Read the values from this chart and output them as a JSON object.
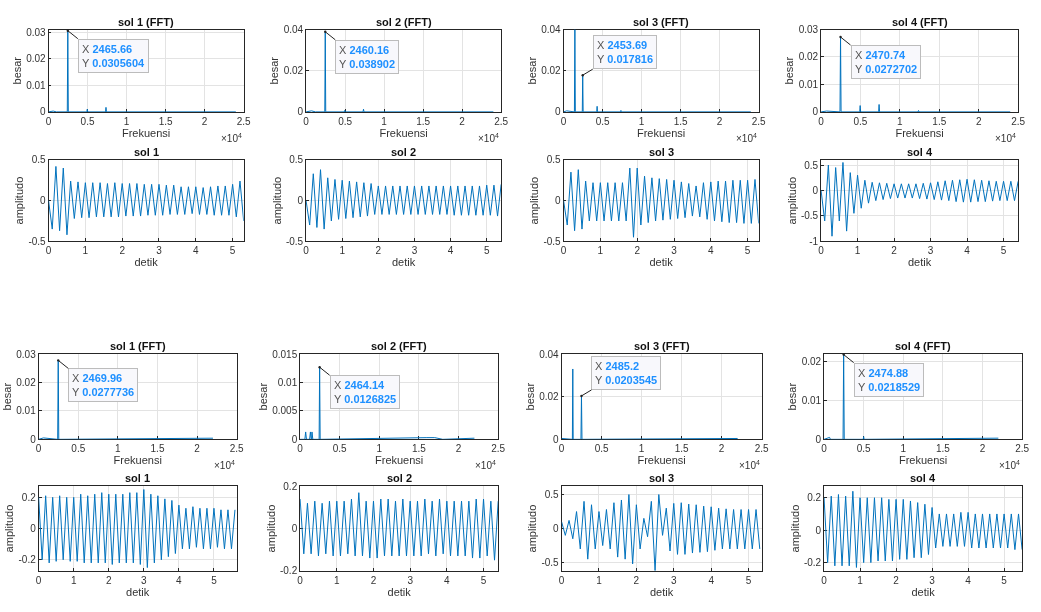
{
  "chart_data": [
    {
      "type": "line",
      "title": "sol 1 (FFT)",
      "xlabel": "Frekuensi",
      "ylabel": "besar",
      "grid": true,
      "xlim": [
        0,
        2.5
      ],
      "ylim": [
        0,
        0.031
      ],
      "xticks": [
        0,
        0.5,
        1,
        1.5,
        2,
        2.5
      ],
      "yticks": [
        0,
        0.01,
        0.02,
        0.03
      ],
      "series": [
        {
          "color": "#0072bd",
          "x": [
            0,
            0.06,
            0.1,
            0.24,
            0.246566,
            0.253,
            0.49,
            0.496,
            0.502,
            0.73,
            0.736,
            0.742,
            2.4
          ],
          "values": [
            0,
            0.0003,
            0,
            0,
            0.0305604,
            0,
            0,
            0.001,
            0,
            0,
            0.0017,
            0,
            0
          ]
        }
      ],
      "annotations": [
        {
          "text": "X 2465.66\nY 0.0305604",
          "x": 0.246566,
          "y": 0.0305604
        },
        "×10$^{4}$"
      ]
    },
    {
      "type": "line",
      "title": "sol 2 (FFT)",
      "xlabel": "Frekuensi",
      "ylabel": "besar",
      "grid": true,
      "xlim": [
        0,
        2.5
      ],
      "ylim": [
        0,
        0.04
      ],
      "xticks": [
        0,
        0.5,
        1,
        1.5,
        2,
        2.5
      ],
      "yticks": [
        0,
        0.02,
        0.04
      ],
      "series": [
        {
          "color": "#0072bd",
          "x": [
            0,
            0.07,
            0.12,
            0.24,
            0.246016,
            0.252,
            0.49,
            0.496,
            0.502,
            0.73,
            0.736,
            0.742,
            2.4
          ],
          "values": [
            0,
            0.0005,
            0,
            0,
            0.038902,
            0,
            0,
            0.0007,
            0,
            0,
            0.0013,
            0,
            0
          ]
        }
      ],
      "annotations": [
        {
          "text": "X 2460.16\nY 0.038902",
          "x": 0.246016,
          "y": 0.038902
        },
        "×10$^{4}$"
      ]
    },
    {
      "type": "line",
      "title": "sol 3 (FFT)",
      "xlabel": "Frekuensi",
      "ylabel": "besar",
      "grid": true,
      "xlim": [
        0,
        2.5
      ],
      "ylim": [
        0,
        0.04
      ],
      "xticks": [
        0,
        0.5,
        1,
        1.5,
        2,
        2.5
      ],
      "yticks": [
        0,
        0.02,
        0.04
      ],
      "series": [
        {
          "color": "#0072bd",
          "x": [
            0,
            0.04,
            0.139,
            0.145,
            0.151,
            0.24,
            0.245369,
            0.251,
            0.425,
            0.43,
            0.435,
            0.73,
            0.735,
            0.74,
            2.4
          ],
          "values": [
            0,
            0.0005,
            0,
            0.04,
            0,
            0,
            0.017816,
            0,
            0,
            0.0027,
            0,
            0,
            0.0007,
            0,
            0
          ]
        }
      ],
      "annotations": [
        {
          "text": "X 2453.69\nY 0.017816",
          "x": 0.245369,
          "y": 0.017816
        },
        "×10$^{4}$"
      ]
    },
    {
      "type": "line",
      "title": "sol 4 (FFT)",
      "xlabel": "Frekuensi",
      "ylabel": "besar",
      "grid": true,
      "xlim": [
        0,
        2.5
      ],
      "ylim": [
        0,
        0.03
      ],
      "xticks": [
        0,
        0.5,
        1,
        1.5,
        2,
        2.5
      ],
      "yticks": [
        0,
        0.01,
        0.02,
        0.03
      ],
      "series": [
        {
          "color": "#0072bd",
          "x": [
            0,
            0.07,
            0.24,
            0.247074,
            0.254,
            0.49,
            0.496,
            0.502,
            0.73,
            0.736,
            0.742,
            1.23,
            1.236,
            1.242,
            2.4
          ],
          "values": [
            0,
            0.0003,
            0,
            0.0272702,
            0,
            0,
            0.0023,
            0,
            0,
            0.0027,
            0,
            0,
            0.0005,
            0,
            0
          ]
        }
      ],
      "annotations": [
        {
          "text": "X 2470.74\nY 0.0272702",
          "x": 0.247074,
          "y": 0.0272702
        },
        "×10$^{4}$"
      ]
    },
    {
      "type": "line",
      "title": "sol 1",
      "xlabel": "detik",
      "ylabel": "amplitudo",
      "grid": true,
      "xlim": [
        0,
        5.3
      ],
      "ylim": [
        -0.5,
        0.5
      ],
      "xticks": [
        0,
        1,
        2,
        3,
        4,
        5
      ],
      "yticks": [
        -0.5,
        0,
        0.5
      ],
      "series": [
        {
          "color": "#0072bd",
          "x": [
            0,
            0.1,
            0.2,
            0.3,
            0.4,
            0.5,
            0.6,
            0.7,
            0.8,
            0.9,
            1,
            1.1,
            1.2,
            1.3,
            1.4,
            1.5,
            1.6,
            1.7,
            1.8,
            1.9,
            2,
            2.1,
            2.2,
            2.3,
            2.4,
            2.5,
            2.6,
            2.7,
            2.8,
            2.9,
            3,
            3.1,
            3.2,
            3.3,
            3.4,
            3.5,
            3.6,
            3.7,
            3.8,
            3.9,
            4,
            4.1,
            4.2,
            4.3,
            4.4,
            4.5,
            4.6,
            4.7,
            4.8,
            4.9,
            5,
            5.1,
            5.2,
            5.3
          ],
          "values": [
            0,
            -0.35,
            0.42,
            -0.37,
            0.4,
            -0.42,
            0.24,
            -0.22,
            0.23,
            -0.21,
            0.22,
            -0.21,
            0.22,
            -0.2,
            0.22,
            -0.2,
            0.21,
            -0.2,
            0.22,
            -0.2,
            0.21,
            -0.19,
            0.21,
            -0.19,
            0.21,
            -0.19,
            0.2,
            -0.18,
            0.2,
            -0.18,
            0.2,
            -0.18,
            0.19,
            -0.17,
            0.19,
            -0.17,
            0.17,
            -0.17,
            0.17,
            -0.16,
            0.17,
            -0.17,
            0.16,
            -0.17,
            0.17,
            -0.18,
            0.18,
            -0.18,
            0.18,
            -0.18,
            0.2,
            -0.2,
            0.24,
            -0.25
          ]
        }
      ]
    },
    {
      "type": "line",
      "title": "sol 2",
      "xlabel": "detik",
      "ylabel": "amplitudo",
      "grid": true,
      "xlim": [
        0,
        5.4
      ],
      "ylim": [
        -0.5,
        0.5
      ],
      "xticks": [
        0,
        1,
        2,
        3,
        4,
        5
      ],
      "yticks": [
        -0.5,
        0,
        0.5
      ],
      "series": [
        {
          "color": "#0072bd",
          "x": [
            0,
            0.1,
            0.2,
            0.3,
            0.4,
            0.5,
            0.6,
            0.7,
            0.8,
            0.9,
            1,
            1.1,
            1.2,
            1.3,
            1.4,
            1.5,
            1.6,
            1.7,
            1.8,
            1.9,
            2,
            2.1,
            2.2,
            2.3,
            2.4,
            2.5,
            2.6,
            2.7,
            2.8,
            2.9,
            3,
            3.1,
            3.2,
            3.3,
            3.4,
            3.5,
            3.6,
            3.7,
            3.8,
            3.9,
            4,
            4.1,
            4.2,
            4.3,
            4.4,
            4.5,
            4.6,
            4.7,
            4.8,
            4.9,
            5,
            5.1,
            5.2,
            5.3,
            5.4
          ],
          "values": [
            0,
            -0.3,
            0.33,
            -0.33,
            0.38,
            -0.35,
            0.28,
            -0.25,
            0.26,
            -0.23,
            0.25,
            -0.22,
            0.24,
            -0.21,
            0.23,
            -0.2,
            0.22,
            -0.19,
            0.21,
            -0.17,
            0.18,
            -0.17,
            0.18,
            -0.17,
            0.18,
            -0.17,
            0.18,
            -0.17,
            0.18,
            -0.17,
            0.18,
            -0.17,
            0.18,
            -0.17,
            0.18,
            -0.17,
            0.18,
            -0.17,
            0.18,
            -0.17,
            0.18,
            -0.18,
            0.18,
            -0.18,
            0.18,
            -0.18,
            0.18,
            -0.18,
            0.18,
            -0.18,
            0.19,
            -0.18,
            0.19,
            -0.19,
            0.2
          ]
        }
      ]
    },
    {
      "type": "line",
      "title": "sol 3",
      "xlabel": "detik",
      "ylabel": "amplitudo",
      "grid": true,
      "xlim": [
        0,
        5.3
      ],
      "ylim": [
        -0.5,
        0.5
      ],
      "xticks": [
        0,
        1,
        2,
        3,
        4,
        5
      ],
      "yticks": [
        -0.5,
        0,
        0.5
      ],
      "series": [
        {
          "color": "#0072bd",
          "x": [
            0,
            0.1,
            0.2,
            0.3,
            0.4,
            0.5,
            0.6,
            0.7,
            0.8,
            0.9,
            1,
            1.1,
            1.2,
            1.3,
            1.4,
            1.5,
            1.6,
            1.7,
            1.8,
            1.9,
            2,
            2.1,
            2.2,
            2.3,
            2.4,
            2.5,
            2.6,
            2.7,
            2.8,
            2.9,
            3,
            3.1,
            3.2,
            3.3,
            3.4,
            3.5,
            3.6,
            3.7,
            3.8,
            3.9,
            4,
            4.1,
            4.2,
            4.3,
            4.4,
            4.5,
            4.6,
            4.7,
            4.8,
            4.9,
            5,
            5.1,
            5.2,
            5.3
          ],
          "values": [
            0,
            -0.3,
            0.35,
            -0.37,
            0.38,
            -0.35,
            0.24,
            -0.25,
            0.22,
            -0.25,
            0.22,
            -0.25,
            0.22,
            -0.25,
            0.22,
            -0.25,
            0.22,
            -0.25,
            0.4,
            -0.45,
            0.4,
            -0.3,
            0.3,
            -0.27,
            0.28,
            -0.25,
            0.27,
            -0.24,
            0.26,
            -0.23,
            0.25,
            -0.22,
            0.23,
            -0.21,
            0.21,
            -0.19,
            0.18,
            -0.2,
            0.22,
            -0.23,
            0.23,
            -0.25,
            0.24,
            -0.26,
            0.24,
            -0.27,
            0.25,
            -0.27,
            0.25,
            -0.28,
            0.25,
            -0.28,
            0.26,
            -0.28
          ]
        }
      ]
    },
    {
      "type": "line",
      "title": "sol 4",
      "xlabel": "detik",
      "ylabel": "amplitudo",
      "grid": true,
      "xlim": [
        0,
        5.4
      ],
      "ylim": [
        -1,
        0.6
      ],
      "xticks": [
        0,
        1,
        2,
        3,
        4,
        5
      ],
      "yticks": [
        -1,
        -0.5,
        0,
        0.5
      ],
      "series": [
        {
          "color": "#0072bd",
          "x": [
            0,
            0.1,
            0.2,
            0.3,
            0.4,
            0.5,
            0.6,
            0.7,
            0.8,
            0.9,
            1,
            1.1,
            1.2,
            1.3,
            1.4,
            1.5,
            1.6,
            1.7,
            1.8,
            1.9,
            2,
            2.1,
            2.2,
            2.3,
            2.4,
            2.5,
            2.6,
            2.7,
            2.8,
            2.9,
            3,
            3.1,
            3.2,
            3.3,
            3.4,
            3.5,
            3.6,
            3.7,
            3.8,
            3.9,
            4,
            4.1,
            4.2,
            4.3,
            4.4,
            4.5,
            4.6,
            4.7,
            4.8,
            4.9,
            5,
            5.1,
            5.2,
            5.3,
            5.4
          ],
          "values": [
            0,
            -0.6,
            0.5,
            -0.9,
            0.45,
            -0.6,
            0.55,
            -0.8,
            0.35,
            -0.45,
            0.3,
            -0.35,
            0.2,
            -0.25,
            0.16,
            -0.2,
            0.15,
            -0.18,
            0.14,
            -0.16,
            0.13,
            -0.15,
            0.13,
            -0.15,
            0.13,
            -0.15,
            0.13,
            -0.16,
            0.14,
            -0.17,
            0.15,
            -0.18,
            0.17,
            -0.19,
            0.19,
            -0.2,
            0.2,
            -0.22,
            0.21,
            -0.23,
            0.22,
            -0.23,
            0.21,
            -0.22,
            0.2,
            -0.22,
            0.19,
            -0.21,
            0.18,
            -0.2,
            0.18,
            -0.2,
            0.18,
            -0.2,
            0.18
          ]
        }
      ]
    },
    {
      "type": "line",
      "title": "sol 1 (FFT)",
      "xlabel": "Frekuensi",
      "ylabel": "besar",
      "grid": true,
      "xlim": [
        0,
        2.5
      ],
      "ylim": [
        0,
        0.03
      ],
      "xticks": [
        0,
        0.5,
        1,
        1.5,
        2,
        2.5
      ],
      "yticks": [
        0,
        0.01,
        0.02,
        0.03
      ],
      "series": [
        {
          "color": "#0072bd",
          "x": [
            0,
            0.06,
            0.24,
            0.246996,
            0.254,
            2.2
          ],
          "values": [
            0,
            0.0005,
            0,
            0.0277736,
            0,
            0.0004
          ]
        }
      ],
      "annotations": [
        {
          "text": "X 2469.96\nY 0.0277736",
          "x": 0.246996,
          "y": 0.0277736
        },
        "×10$^{4}$"
      ]
    },
    {
      "type": "line",
      "title": "sol 2 (FFT)",
      "xlabel": "Frekuensi",
      "ylabel": "besar",
      "grid": true,
      "xlim": [
        0,
        2.5
      ],
      "ylim": [
        0,
        0.015
      ],
      "xticks": [
        0,
        0.5,
        1,
        1.5,
        2,
        2.5
      ],
      "yticks": [
        0,
        0.005,
        0.01,
        0.015
      ],
      "series": [
        {
          "color": "#0072bd",
          "x": [
            0,
            0.06,
            0.07,
            0.08,
            0.12,
            0.13,
            0.14,
            0.145,
            0.15,
            0.16,
            0.24,
            0.246414,
            0.253,
            1.6,
            1.7,
            1.8,
            2.2
          ],
          "values": [
            0,
            0,
            0.0013,
            0,
            0,
            0.0013,
            0,
            0,
            0.0013,
            0,
            0,
            0.0126825,
            0,
            0.0003,
            0.0003,
            0,
            0.0002
          ]
        }
      ],
      "annotations": [
        {
          "text": "X 2464.14\nY 0.0126825",
          "x": 0.246414,
          "y": 0.0126825
        },
        "×10$^{4}$"
      ]
    },
    {
      "type": "line",
      "title": "sol 3 (FFT)",
      "xlabel": "Frekuensi",
      "ylabel": "besar",
      "grid": true,
      "xlim": [
        0,
        2.5
      ],
      "ylim": [
        0,
        0.04
      ],
      "xticks": [
        0,
        0.5,
        1,
        1.5,
        2,
        2.5
      ],
      "yticks": [
        0,
        0.02,
        0.04
      ],
      "series": [
        {
          "color": "#0072bd",
          "x": [
            0,
            0.135,
            0.14,
            0.145,
            0.242,
            0.24852,
            0.255,
            2.2
          ],
          "values": [
            0.0004,
            0,
            0.033,
            0,
            0,
            0.0203545,
            0,
            0.0004
          ]
        }
      ],
      "annotations": [
        {
          "text": "X 2485.2\nY 0.0203545",
          "x": 0.24852,
          "y": 0.0203545
        },
        "×10$^{4}$"
      ]
    },
    {
      "type": "line",
      "title": "sol 4 (FFT)",
      "xlabel": "Frekuensi",
      "ylabel": "besar",
      "grid": true,
      "xlim": [
        0,
        2.5
      ],
      "ylim": [
        0,
        0.022
      ],
      "xticks": [
        0,
        0.5,
        1,
        1.5,
        2,
        2.5
      ],
      "yticks": [
        0,
        0.01,
        0.02
      ],
      "series": [
        {
          "color": "#0072bd",
          "x": [
            0,
            0.07,
            0.08,
            0.24,
            0.247488,
            0.255,
            0.495,
            0.5,
            0.505,
            2.2
          ],
          "values": [
            0,
            0.0005,
            0,
            0,
            0.0218529,
            0,
            0,
            0.0007,
            0,
            0.0003
          ]
        }
      ],
      "annotations": [
        {
          "text": "X 2474.88\nY 0.0218529",
          "x": 0.247488,
          "y": 0.0218529
        },
        "×10$^{4}$"
      ]
    },
    {
      "type": "line",
      "title": "sol 1",
      "xlabel": "detik",
      "ylabel": "amplitudo",
      "grid": true,
      "xlim": [
        0,
        5.65
      ],
      "ylim": [
        -0.27,
        0.27
      ],
      "xticks": [
        0,
        1,
        2,
        3,
        4,
        5
      ],
      "yticks": [
        -0.2,
        0,
        0.2
      ],
      "series": [
        {
          "color": "#0072bd",
          "x": [
            0,
            0.1,
            0.2,
            0.3,
            0.4,
            0.5,
            0.6,
            0.7,
            0.8,
            0.9,
            1,
            1.1,
            1.2,
            1.3,
            1.4,
            1.5,
            1.6,
            1.7,
            1.8,
            1.9,
            2,
            2.1,
            2.2,
            2.3,
            2.4,
            2.5,
            2.6,
            2.7,
            2.8,
            2.9,
            3,
            3.1,
            3.2,
            3.3,
            3.4,
            3.5,
            3.6,
            3.7,
            3.8,
            3.9,
            4,
            4.1,
            4.2,
            4.3,
            4.4,
            4.5,
            4.6,
            4.7,
            4.8,
            4.9,
            5,
            5.1,
            5.2,
            5.3,
            5.4,
            5.5,
            5.6
          ],
          "values": [
            0.2,
            -0.2,
            0.21,
            -0.22,
            0.2,
            -0.21,
            0.21,
            -0.2,
            0.2,
            -0.21,
            0.2,
            -0.21,
            0.22,
            -0.22,
            0.21,
            -0.22,
            0.22,
            -0.22,
            0.23,
            -0.22,
            0.22,
            -0.23,
            0.22,
            -0.22,
            0.22,
            -0.22,
            0.23,
            -0.22,
            0.23,
            -0.23,
            0.25,
            -0.25,
            0.22,
            -0.22,
            0.21,
            -0.2,
            0.19,
            -0.18,
            0.18,
            -0.16,
            0.15,
            -0.13,
            0.13,
            -0.13,
            0.14,
            -0.12,
            0.13,
            -0.13,
            0.13,
            -0.13,
            0.13,
            -0.12,
            0.12,
            -0.13,
            0.12,
            -0.13,
            0.12
          ]
        }
      ]
    },
    {
      "type": "line",
      "title": "sol 2",
      "xlabel": "detik",
      "ylabel": "amplitudo",
      "grid": true,
      "xlim": [
        0,
        5.4
      ],
      "ylim": [
        -0.2,
        0.2
      ],
      "xticks": [
        0,
        1,
        2,
        3,
        4,
        5
      ],
      "yticks": [
        -0.2,
        0,
        0.2
      ],
      "series": [
        {
          "color": "#0072bd",
          "x": [
            0,
            0.1,
            0.2,
            0.3,
            0.4,
            0.5,
            0.6,
            0.7,
            0.8,
            0.9,
            1,
            1.1,
            1.2,
            1.3,
            1.4,
            1.5,
            1.6,
            1.7,
            1.8,
            1.9,
            2,
            2.1,
            2.2,
            2.3,
            2.4,
            2.5,
            2.6,
            2.7,
            2.8,
            2.9,
            3,
            3.1,
            3.2,
            3.3,
            3.4,
            3.5,
            3.6,
            3.7,
            3.8,
            3.9,
            4,
            4.1,
            4.2,
            4.3,
            4.4,
            4.5,
            4.6,
            4.7,
            4.8,
            4.9,
            5,
            5.1,
            5.2,
            5.3,
            5.4
          ],
          "values": [
            0.14,
            -0.12,
            0.12,
            -0.12,
            0.13,
            -0.13,
            0.12,
            -0.12,
            0.13,
            -0.13,
            0.13,
            -0.13,
            0.13,
            -0.12,
            0.14,
            -0.13,
            0.17,
            -0.13,
            0.13,
            -0.14,
            0.13,
            -0.14,
            0.14,
            -0.13,
            0.14,
            -0.13,
            0.13,
            -0.13,
            0.14,
            -0.13,
            0.13,
            -0.13,
            0.13,
            -0.13,
            0.14,
            -0.12,
            0.13,
            -0.13,
            0.14,
            -0.12,
            0.13,
            -0.13,
            0.13,
            -0.13,
            0.13,
            -0.13,
            0.13,
            -0.14,
            0.14,
            -0.14,
            0.14,
            -0.13,
            0.13,
            -0.15,
            0.13
          ]
        }
      ]
    },
    {
      "type": "line",
      "title": "sol 3",
      "xlabel": "detik",
      "ylabel": "amplitudo",
      "grid": true,
      "xlim": [
        0,
        5.35
      ],
      "ylim": [
        -0.62,
        0.62
      ],
      "xticks": [
        0,
        1,
        2,
        3,
        4,
        5
      ],
      "yticks": [
        -0.5,
        0,
        0.5
      ],
      "series": [
        {
          "color": "#0072bd",
          "x": [
            0,
            0.1,
            0.2,
            0.3,
            0.4,
            0.5,
            0.6,
            0.7,
            0.8,
            0.9,
            1,
            1.1,
            1.2,
            1.3,
            1.4,
            1.5,
            1.6,
            1.7,
            1.8,
            1.9,
            2,
            2.1,
            2.2,
            2.3,
            2.4,
            2.5,
            2.6,
            2.7,
            2.8,
            2.9,
            3,
            3.1,
            3.2,
            3.3,
            3.4,
            3.5,
            3.6,
            3.7,
            3.8,
            3.9,
            4,
            4.1,
            4.2,
            4.3,
            4.4,
            4.5,
            4.6,
            4.7,
            4.8,
            4.9,
            5,
            5.1,
            5.2,
            5.3
          ],
          "values": [
            0.1,
            -0.1,
            0.12,
            -0.15,
            0.25,
            -0.3,
            0.4,
            -0.45,
            0.35,
            -0.3,
            0.25,
            -0.25,
            0.28,
            -0.3,
            0.38,
            -0.42,
            0.42,
            -0.45,
            0.5,
            -0.52,
            0.35,
            -0.3,
            0.15,
            -0.12,
            0.4,
            -0.62,
            0.5,
            -0.1,
            0.3,
            -0.33,
            0.37,
            -0.38,
            0.38,
            -0.38,
            0.36,
            -0.36,
            0.35,
            -0.35,
            0.33,
            -0.34,
            0.32,
            -0.32,
            0.3,
            -0.3,
            0.29,
            -0.3,
            0.28,
            -0.3,
            0.28,
            -0.3,
            0.28,
            -0.3,
            0.28,
            -0.3
          ]
        }
      ]
    },
    {
      "type": "line",
      "title": "sol 4",
      "xlabel": "detik",
      "ylabel": "amplitudo",
      "grid": true,
      "xlim": [
        0,
        5.5
      ],
      "ylim": [
        -0.25,
        0.27
      ],
      "xticks": [
        0,
        1,
        2,
        3,
        4,
        5
      ],
      "yticks": [
        -0.2,
        0,
        0.2
      ],
      "series": [
        {
          "color": "#0072bd",
          "x": [
            0,
            0.1,
            0.2,
            0.3,
            0.4,
            0.5,
            0.6,
            0.7,
            0.8,
            0.9,
            1,
            1.1,
            1.2,
            1.3,
            1.4,
            1.5,
            1.6,
            1.7,
            1.8,
            1.9,
            2,
            2.1,
            2.2,
            2.3,
            2.4,
            2.5,
            2.6,
            2.7,
            2.8,
            2.9,
            3,
            3.1,
            3.2,
            3.3,
            3.4,
            3.5,
            3.6,
            3.7,
            3.8,
            3.9,
            4,
            4.1,
            4.2,
            4.3,
            4.4,
            4.5,
            4.6,
            4.7,
            4.8,
            4.9,
            5,
            5.1,
            5.2,
            5.3,
            5.4,
            5.5
          ],
          "values": [
            0.2,
            -0.2,
            0.21,
            -0.22,
            0.22,
            -0.22,
            0.21,
            -0.22,
            0.24,
            -0.23,
            0.2,
            -0.2,
            0.2,
            -0.2,
            0.2,
            -0.19,
            0.2,
            -0.19,
            0.19,
            -0.19,
            0.19,
            -0.18,
            0.19,
            -0.18,
            0.18,
            -0.17,
            0.17,
            -0.17,
            0.16,
            -0.15,
            0.14,
            -0.11,
            0.1,
            -0.1,
            0.1,
            -0.1,
            0.1,
            -0.1,
            0.11,
            -0.1,
            0.11,
            -0.11,
            0.1,
            -0.11,
            0.1,
            -0.11,
            0.1,
            -0.11,
            0.1,
            -0.11,
            0.1,
            -0.11,
            0.1,
            -0.12,
            0.1,
            -0.12
          ]
        }
      ]
    }
  ]
}
